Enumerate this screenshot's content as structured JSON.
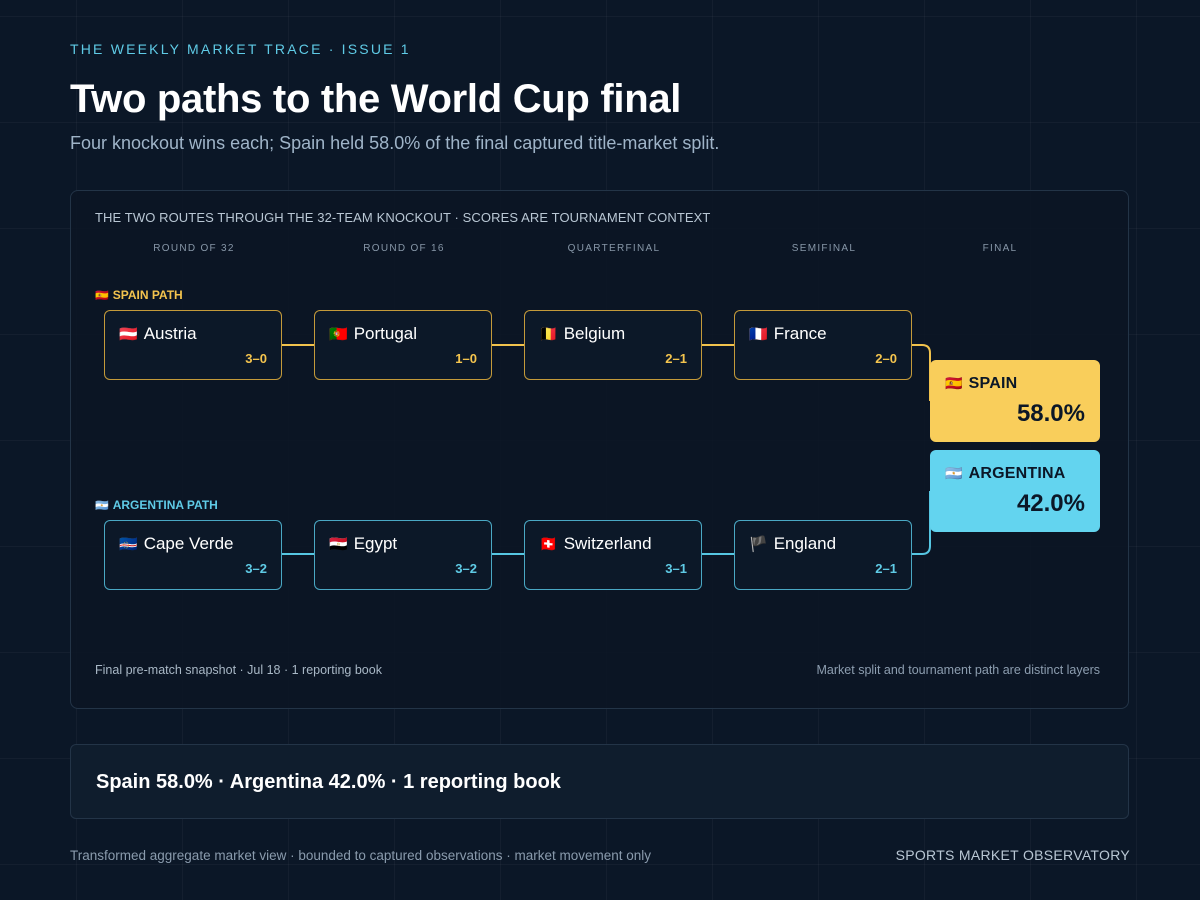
{
  "header": {
    "kicker": "THE WEEKLY MARKET TRACE · ISSUE 1",
    "title": "Two paths to the World Cup final",
    "subtitle": "Four knockout wins each; Spain held 58.0% of the final captured title-market split."
  },
  "bracket": {
    "heading": "THE TWO ROUTES THROUGH THE 32-TEAM KNOCKOUT · SCORES ARE TOURNAMENT CONTEXT",
    "rounds": [
      "ROUND OF 32",
      "ROUND OF 16",
      "QUARTERFINAL",
      "SEMIFINAL",
      "FINAL"
    ],
    "spain_path": {
      "flag": "🇪🇸",
      "label": "SPAIN PATH",
      "accent_color": "#f4c44e",
      "matches": [
        {
          "flag": "🇦🇹",
          "opponent": "Austria",
          "score": "3–0"
        },
        {
          "flag": "🇵🇹",
          "opponent": "Portugal",
          "score": "1–0"
        },
        {
          "flag": "🇧🇪",
          "opponent": "Belgium",
          "score": "2–1"
        },
        {
          "flag": "🇫🇷",
          "opponent": "France",
          "score": "2–0"
        }
      ]
    },
    "argentina_path": {
      "flag": "🇦🇷",
      "label": "ARGENTINA PATH",
      "accent_color": "#5fcbe6",
      "matches": [
        {
          "flag": "🇨🇻",
          "opponent": "Cape Verde",
          "score": "3–2"
        },
        {
          "flag": "🇪🇬",
          "opponent": "Egypt",
          "score": "3–2"
        },
        {
          "flag": "🇨🇭",
          "opponent": "Switzerland",
          "score": "3–1"
        },
        {
          "flag": "🏴",
          "opponent": "England",
          "score": "2–1"
        }
      ]
    },
    "final": [
      {
        "flag": "🇪🇸",
        "team": "SPAIN",
        "share": "58.0%",
        "share_value": 58.0,
        "color": "#f9ce5b"
      },
      {
        "flag": "🇦🇷",
        "team": "ARGENTINA",
        "share": "42.0%",
        "share_value": 42.0,
        "color": "#63d4ef"
      }
    ],
    "footnote_left": "Final pre-match snapshot · Jul 18 · 1 reporting book",
    "footnote_right": "Market split and tournament path are distinct layers"
  },
  "summary": "Spain 58.0% · Argentina 42.0% · 1 reporting book",
  "footer": {
    "left": "Transformed aggregate market view · bounded to captured observations · market movement only",
    "right": "SPORTS MARKET OBSERVATORY"
  },
  "colors": {
    "background": "#0b1727",
    "spain_accent": "#f4c44e",
    "argentina_accent": "#5fcbe6"
  }
}
